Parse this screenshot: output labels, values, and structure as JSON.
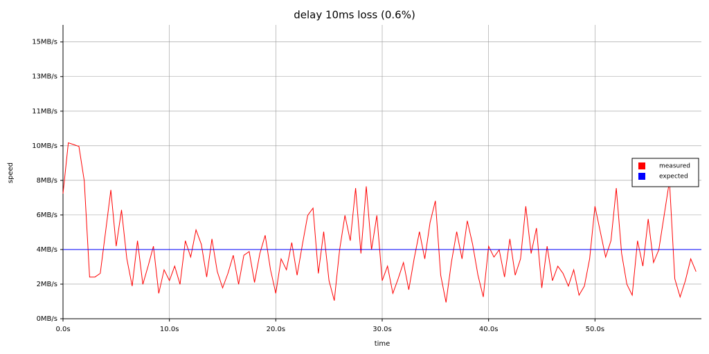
{
  "chart_data": {
    "type": "line",
    "title": "delay 10ms loss (0.6%)",
    "x_label": "time",
    "y_label": "speed",
    "xlim": [
      0,
      60
    ],
    "ylim": [
      0,
      16.2
    ],
    "xticks": [
      {
        "value": 0,
        "label": "0.0s"
      },
      {
        "value": 10,
        "label": "10.0s"
      },
      {
        "value": 20,
        "label": "20.0s"
      },
      {
        "value": 30,
        "label": "30.0s"
      },
      {
        "value": 40,
        "label": "40.0s"
      },
      {
        "value": 50,
        "label": "50.0s"
      }
    ],
    "yticks": [
      {
        "value": 0,
        "label": "0MB/s"
      },
      {
        "value": 1.907,
        "label": "2MB/s"
      },
      {
        "value": 3.815,
        "label": "4MB/s"
      },
      {
        "value": 5.722,
        "label": "6MB/s"
      },
      {
        "value": 7.629,
        "label": "8MB/s"
      },
      {
        "value": 9.537,
        "label": "10MB/s"
      },
      {
        "value": 11.444,
        "label": "11MB/s"
      },
      {
        "value": 13.351,
        "label": "13MB/s"
      },
      {
        "value": 15.259,
        "label": "15MB/s"
      }
    ],
    "grid": true,
    "legend": "right",
    "x": [
      0,
      0.5,
      1,
      1.5,
      2,
      2.5,
      3,
      3.5,
      4,
      4.5,
      5,
      5.5,
      6,
      6.5,
      7,
      7.5,
      8,
      8.5,
      9,
      9.5,
      10,
      10.5,
      11,
      11.5,
      12,
      12.5,
      13,
      13.5,
      14,
      14.5,
      15,
      15.5,
      16,
      16.5,
      17,
      17.5,
      18,
      18.5,
      19,
      19.5,
      20,
      20.5,
      21,
      21.5,
      22,
      22.5,
      23,
      23.5,
      24,
      24.5,
      25,
      25.5,
      26,
      26.5,
      27,
      27.5,
      28,
      28.5,
      29,
      29.5,
      30,
      30.5,
      31,
      31.5,
      32,
      32.5,
      33,
      33.5,
      34,
      34.5,
      35,
      35.5,
      36,
      36.5,
      37,
      37.5,
      38,
      38.5,
      39,
      39.5,
      40,
      40.5,
      41,
      41.5,
      42,
      42.5,
      43,
      43.5,
      44,
      44.5,
      45,
      45.5,
      46,
      46.5,
      47,
      47.5,
      48,
      48.5,
      49,
      49.5,
      50,
      50.5,
      51,
      51.5,
      52,
      52.5,
      53,
      53.5,
      54,
      54.5,
      55,
      55.5,
      56,
      56.5,
      57,
      57.5,
      58,
      58.5,
      59,
      59.5
    ],
    "series": [
      {
        "name": "measured",
        "color": "#ff0000",
        "values": [
          6.9,
          9.7,
          9.6,
          9.5,
          7.6,
          2.3,
          2.3,
          2.5,
          4.8,
          7.1,
          4.0,
          6.0,
          3.3,
          1.8,
          4.3,
          1.9,
          2.9,
          4.0,
          1.4,
          2.7,
          2.1,
          2.9,
          1.9,
          4.3,
          3.4,
          4.9,
          4.1,
          2.3,
          4.4,
          2.6,
          1.7,
          2.5,
          3.5,
          1.9,
          3.5,
          3.7,
          2.0,
          3.6,
          4.6,
          2.7,
          1.4,
          3.3,
          2.7,
          4.2,
          2.4,
          4.1,
          5.7,
          6.1,
          2.5,
          4.8,
          2.1,
          1.0,
          3.8,
          5.7,
          4.3,
          7.2,
          3.6,
          7.3,
          3.8,
          5.7,
          2.1,
          2.9,
          1.4,
          2.2,
          3.1,
          1.6,
          3.3,
          4.8,
          3.3,
          5.3,
          6.5,
          2.4,
          0.9,
          3.1,
          4.8,
          3.3,
          5.4,
          4.1,
          2.4,
          1.2,
          4.0,
          3.4,
          3.8,
          2.3,
          4.4,
          2.4,
          3.3,
          6.2,
          3.6,
          5.0,
          1.7,
          4.0,
          2.1,
          2.9,
          2.5,
          1.8,
          2.7,
          1.3,
          1.8,
          3.3,
          6.2,
          4.8,
          3.4,
          4.3,
          7.2,
          3.6,
          1.9,
          1.3,
          4.3,
          2.9,
          5.5,
          3.1,
          3.8,
          5.7,
          7.6,
          2.2,
          1.2,
          2.1,
          3.3,
          2.6
        ]
      },
      {
        "name": "expected",
        "color": "#0000ff",
        "x": [
          0,
          60
        ],
        "values": [
          3.815,
          3.815
        ]
      }
    ]
  }
}
